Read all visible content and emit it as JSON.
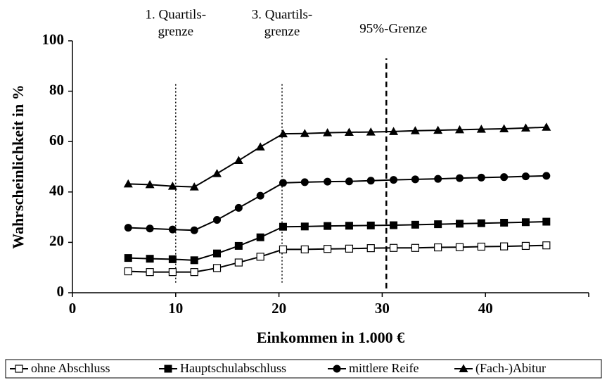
{
  "chart_data": {
    "type": "line",
    "xlabel": "Einkommen in 1.000 €",
    "ylabel": "Wahrscheinlichkeit in %",
    "xlim": [
      0,
      50
    ],
    "ylim": [
      0,
      100
    ],
    "xticks": [
      0,
      10,
      20,
      30,
      40
    ],
    "yticks": [
      0,
      20,
      40,
      60,
      80,
      100
    ],
    "x": [
      5.4,
      7.5,
      9.7,
      11.8,
      14,
      16.1,
      18.2,
      20.4,
      22.5,
      24.7,
      26.8,
      28.9,
      31.1,
      33.2,
      35.4,
      37.5,
      39.6,
      41.8,
      43.9,
      45.9
    ],
    "series": [
      {
        "name": "ohne Abschluss",
        "color": "#000000",
        "marker": "open-square",
        "values": [
          8.5,
          8.2,
          8.2,
          8.2,
          9.8,
          12,
          14.3,
          17.2,
          17.2,
          17.4,
          17.5,
          17.7,
          17.8,
          17.8,
          18,
          18.1,
          18.3,
          18.4,
          18.6,
          18.8
        ]
      },
      {
        "name": "Hauptschulabschluss",
        "color": "#000000",
        "marker": "square",
        "values": [
          13.8,
          13.5,
          13.3,
          12.9,
          15.6,
          18.6,
          22,
          26.2,
          26.3,
          26.5,
          26.6,
          26.7,
          26.8,
          27,
          27.2,
          27.4,
          27.6,
          27.8,
          28,
          28.2
        ]
      },
      {
        "name": "mittlere Reife",
        "color": "#000000",
        "marker": "circle",
        "values": [
          25.8,
          25.5,
          25.1,
          24.8,
          28.9,
          33.7,
          38.5,
          43.6,
          43.9,
          44.1,
          44.2,
          44.5,
          44.8,
          45,
          45.2,
          45.5,
          45.7,
          45.9,
          46.2,
          46.4
        ]
      },
      {
        "name": "(Fach-)Abitur",
        "color": "#000000",
        "marker": "triangle",
        "values": [
          43.2,
          42.9,
          42.3,
          42,
          47.3,
          52.5,
          57.9,
          63.1,
          63.2,
          63.5,
          63.7,
          63.8,
          64,
          64.3,
          64.5,
          64.7,
          64.9,
          65.1,
          65.4,
          65.7
        ]
      }
    ],
    "reference_lines": [
      {
        "x": 10,
        "style": "dotted",
        "y": [
          4,
          83
        ],
        "lines": [
          "1. Quartils-",
          "grenze"
        ]
      },
      {
        "x": 20.3,
        "style": "dotted",
        "y": [
          4,
          83
        ],
        "lines": [
          "3. Quartils-",
          "grenze"
        ]
      },
      {
        "x": 30.4,
        "style": "dashed",
        "y": [
          1.7,
          93
        ],
        "lines": [
          "95%-Grenze"
        ]
      }
    ],
    "legend": "bottom",
    "grid": false
  }
}
